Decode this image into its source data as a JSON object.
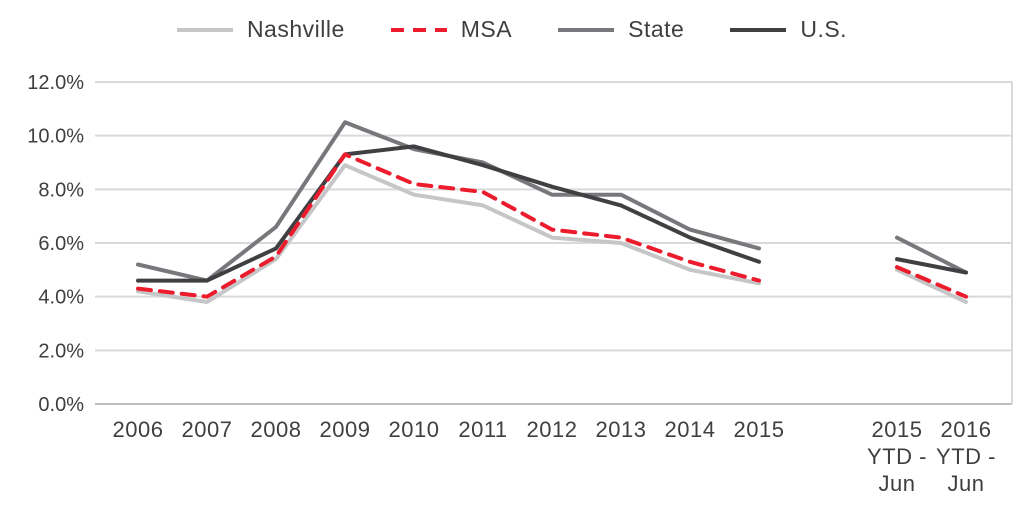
{
  "chart_data": {
    "type": "line",
    "ylim": [
      0,
      12
    ],
    "ytick_step": 2,
    "ytick_suffix": "%",
    "grid": true,
    "legend_position": "top",
    "segments": [
      {
        "categories": [
          "2006",
          "2007",
          "2008",
          "2009",
          "2010",
          "2011",
          "2012",
          "2013",
          "2014",
          "2015"
        ]
      },
      {
        "categories": [
          "2015\nYTD -\nJun",
          "2016\nYTD -\nJun"
        ]
      }
    ],
    "draw_order": [
      0,
      2,
      3,
      1
    ],
    "series": [
      {
        "name": "Nashville",
        "color": "#c5c6c8",
        "dash": null,
        "width": 4,
        "values": [
          [
            4.2,
            3.8,
            5.4,
            8.9,
            7.8,
            7.4,
            6.2,
            6.0,
            5.0,
            4.5
          ],
          [
            5.0,
            3.8
          ]
        ]
      },
      {
        "name": "MSA",
        "color": "#ec1c2d",
        "dash": "13,9",
        "width": 4,
        "values": [
          [
            4.3,
            4.0,
            5.5,
            9.3,
            8.2,
            7.9,
            6.5,
            6.2,
            5.3,
            4.6
          ],
          [
            5.1,
            4.0
          ]
        ]
      },
      {
        "name": "State",
        "color": "#77787b",
        "dash": null,
        "width": 4,
        "values": [
          [
            5.2,
            4.6,
            6.6,
            10.5,
            9.5,
            9.0,
            7.8,
            7.8,
            6.5,
            5.8
          ],
          [
            6.2,
            4.9
          ]
        ]
      },
      {
        "name": "U.S.",
        "color": "#404042",
        "dash": null,
        "width": 4,
        "values": [
          [
            4.6,
            4.6,
            5.8,
            9.3,
            9.6,
            8.9,
            8.1,
            7.4,
            6.2,
            5.3
          ],
          [
            5.4,
            4.9
          ]
        ]
      }
    ],
    "colors": {
      "gridline": "#d9d9d9",
      "baseline": "#bdbdbd",
      "tick_text": "#3f3f42"
    }
  }
}
